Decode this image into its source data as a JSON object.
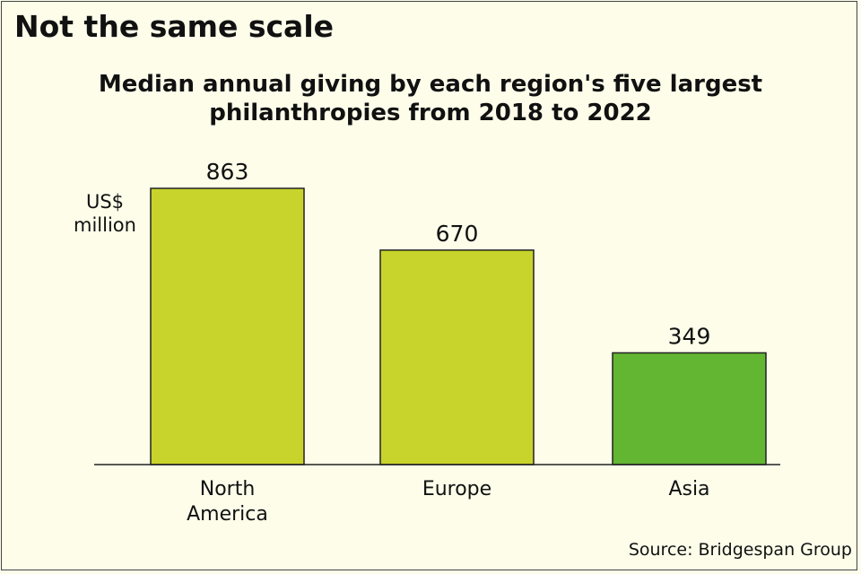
{
  "chart_data": {
    "type": "bar",
    "title": "Not the same scale",
    "subtitle_lines": [
      "Median annual giving by each region's five largest",
      "philanthropies from 2018 to 2022"
    ],
    "ylabel_lines": [
      "US$",
      "million"
    ],
    "categories": [
      [
        "North",
        "America"
      ],
      [
        "Europe"
      ],
      [
        "Asia"
      ]
    ],
    "values": [
      863,
      670,
      349
    ],
    "data_labels": [
      "863",
      "670",
      "349"
    ],
    "bar_colors": [
      "#c8d42b",
      "#c8d42b",
      "#63b632"
    ],
    "ylim": [
      0,
      863
    ],
    "grid": false,
    "source": "Source: Bridgespan Group"
  },
  "colors": {
    "background": "#fdfdea",
    "bar_main": "#c8d42b",
    "bar_highlight": "#63b632"
  }
}
